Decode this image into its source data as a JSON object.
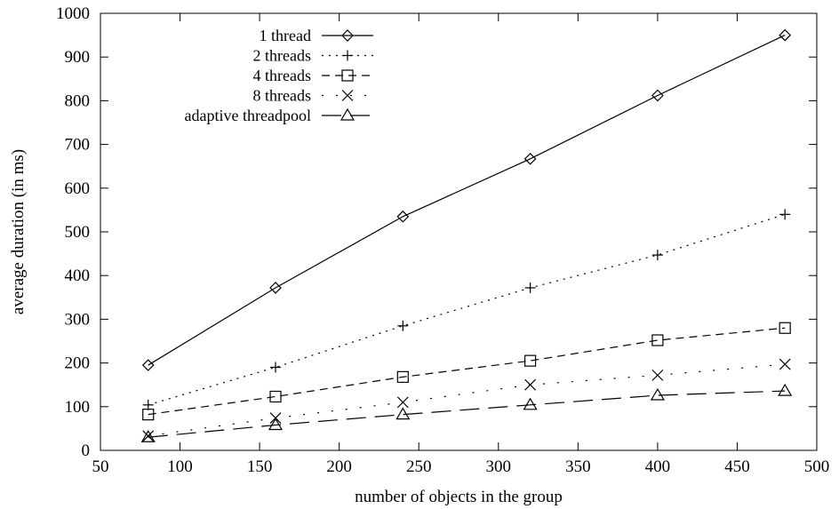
{
  "chart_data": {
    "type": "line",
    "title": "",
    "xlabel": "number of objects in the group",
    "ylabel": "average duration (in ms)",
    "xlim": [
      50,
      500
    ],
    "ylim": [
      0,
      1000
    ],
    "x_ticks": [
      "50",
      "100",
      "150",
      "200",
      "250",
      "300",
      "350",
      "400",
      "450",
      "500"
    ],
    "y_ticks": [
      "0",
      "100",
      "200",
      "300",
      "400",
      "500",
      "600",
      "700",
      "800",
      "900",
      "1000"
    ],
    "grid": false,
    "legend_position": "top-left",
    "x": [
      80,
      160,
      240,
      320,
      400,
      480
    ],
    "series": [
      {
        "name": "1 thread",
        "values": [
          195,
          372,
          535,
          667,
          812,
          950
        ],
        "marker": "diamond",
        "line_style": "solid",
        "color": "#000000"
      },
      {
        "name": "2 threads",
        "values": [
          104,
          190,
          285,
          372,
          447,
          540
        ],
        "marker": "plus",
        "line_style": "dotted",
        "color": "#000000"
      },
      {
        "name": "4 threads",
        "values": [
          82,
          123,
          168,
          205,
          252,
          280
        ],
        "marker": "square",
        "line_style": "dashed",
        "color": "#000000"
      },
      {
        "name": "8 threads",
        "values": [
          33,
          74,
          110,
          150,
          172,
          197
        ],
        "marker": "cross",
        "line_style": "sparse-dotted",
        "color": "#000000"
      },
      {
        "name": "adaptive threadpool",
        "values": [
          30,
          58,
          82,
          104,
          126,
          136
        ],
        "marker": "triangle",
        "line_style": "long-dashed",
        "color": "#000000"
      }
    ]
  }
}
